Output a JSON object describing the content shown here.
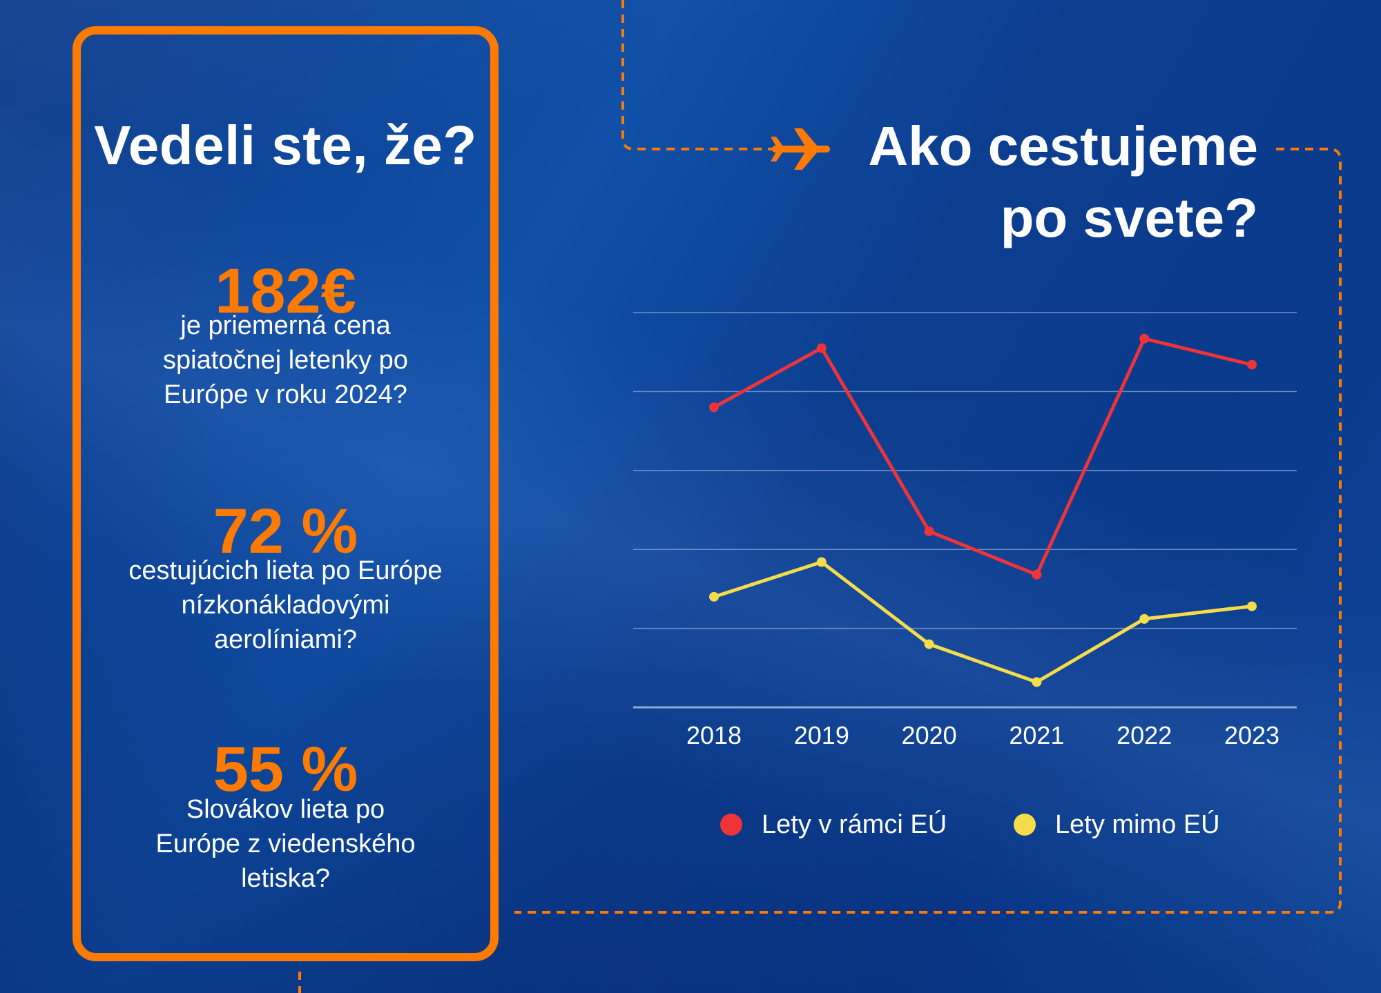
{
  "facts": {
    "heading": "Vedeli ste, že?",
    "items": [
      {
        "number": "182€",
        "line1": "je priemerná cena",
        "line2": "spiatočnej letenky po",
        "line3": "Európe v roku 2024?"
      },
      {
        "number": "72 %",
        "line1": "cestujúcich lieta po Európe",
        "line2": "nízkonákladovými",
        "line3": "aerolíniami?"
      },
      {
        "number": "55 %",
        "line1": "Slovákov lieta po",
        "line2": "Európe z viedenského",
        "line3": "letiska?"
      }
    ]
  },
  "colors": {
    "accent": "#ff7a00",
    "background": "#0b3d8f",
    "series_eu": "#ee3339",
    "series_non_eu": "#f5dc4a"
  },
  "icons": [
    "airplane-icon"
  ],
  "chart_data": {
    "type": "line",
    "title_line1": "Ako cestujeme",
    "title_line2": "po svete?",
    "x": [
      "2018",
      "2019",
      "2020",
      "2021",
      "2022",
      "2023"
    ],
    "ylim": [
      0,
      5
    ],
    "grid": true,
    "legend_position": "bottom",
    "series": [
      {
        "name": "Lety v rámci EÚ",
        "color": "#ee3339",
        "values": [
          3.8,
          4.55,
          2.23,
          1.68,
          4.67,
          4.34
        ]
      },
      {
        "name": "Lety mimo EÚ",
        "color": "#f5dc4a",
        "values": [
          1.4,
          1.84,
          0.8,
          0.32,
          1.12,
          1.28
        ]
      }
    ]
  }
}
